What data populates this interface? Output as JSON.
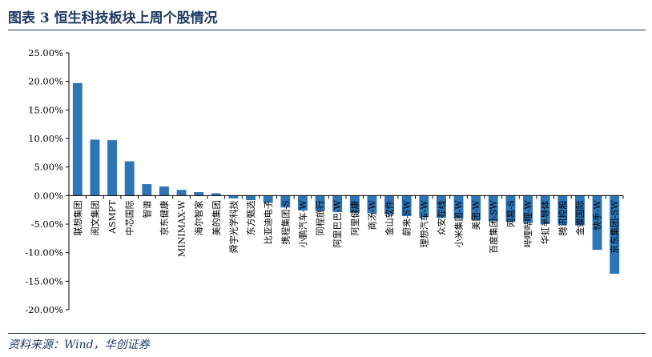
{
  "header": {
    "title": "图表 3   恒生科技板块上周个股情况"
  },
  "footer": {
    "source": "资料来源：Wind，华创证券"
  },
  "chart_data": {
    "type": "bar",
    "title": "",
    "xlabel": "",
    "ylabel": "",
    "ylim": [
      -20,
      25
    ],
    "yticks": [
      25,
      20,
      15,
      10,
      5,
      0,
      -5,
      -10,
      -15,
      -20
    ],
    "ytick_labels": [
      "25.00%",
      "20.00%",
      "15.00%",
      "10.00%",
      "5.00%",
      "0.00%",
      "-5.00%",
      "-10.00%",
      "-15.00%",
      "-20.00%"
    ],
    "grid": false,
    "legend": "none",
    "bar_color": "#2e75b6",
    "categories": [
      "联想集团",
      "阅文集团",
      "ASMPT",
      "中芯国际",
      "智谱",
      "京东健康",
      "MINIMAX-W",
      "海尔智家",
      "美的集团",
      "舜宇光学科技",
      "东方甄选",
      "比亚迪电子",
      "携程集团-S",
      "小鹏汽车-W",
      "同程旅行",
      "阿里巴巴-W",
      "阿里健康",
      "商汤-W",
      "金山软件",
      "蔚来-SW",
      "理想汽车-W",
      "众安在线",
      "小米集团-W",
      "美团-W",
      "百度集团-SW",
      "网易-S",
      "哔哩哔哩-W",
      "华虹半导体",
      "腾讯控股",
      "金蝶国际",
      "快手-W",
      "京东集团-SW"
    ],
    "values": [
      19.7,
      9.8,
      9.7,
      6.0,
      2.0,
      1.6,
      1.0,
      0.6,
      0.4,
      -0.5,
      -0.8,
      -1.3,
      -2.1,
      -2.6,
      -2.7,
      -2.9,
      -3.0,
      -3.1,
      -3.3,
      -3.6,
      -3.8,
      -3.9,
      -4.0,
      -4.3,
      -4.5,
      -4.6,
      -4.8,
      -5.0,
      -5.1,
      -5.2,
      -9.5,
      -13.7
    ]
  }
}
